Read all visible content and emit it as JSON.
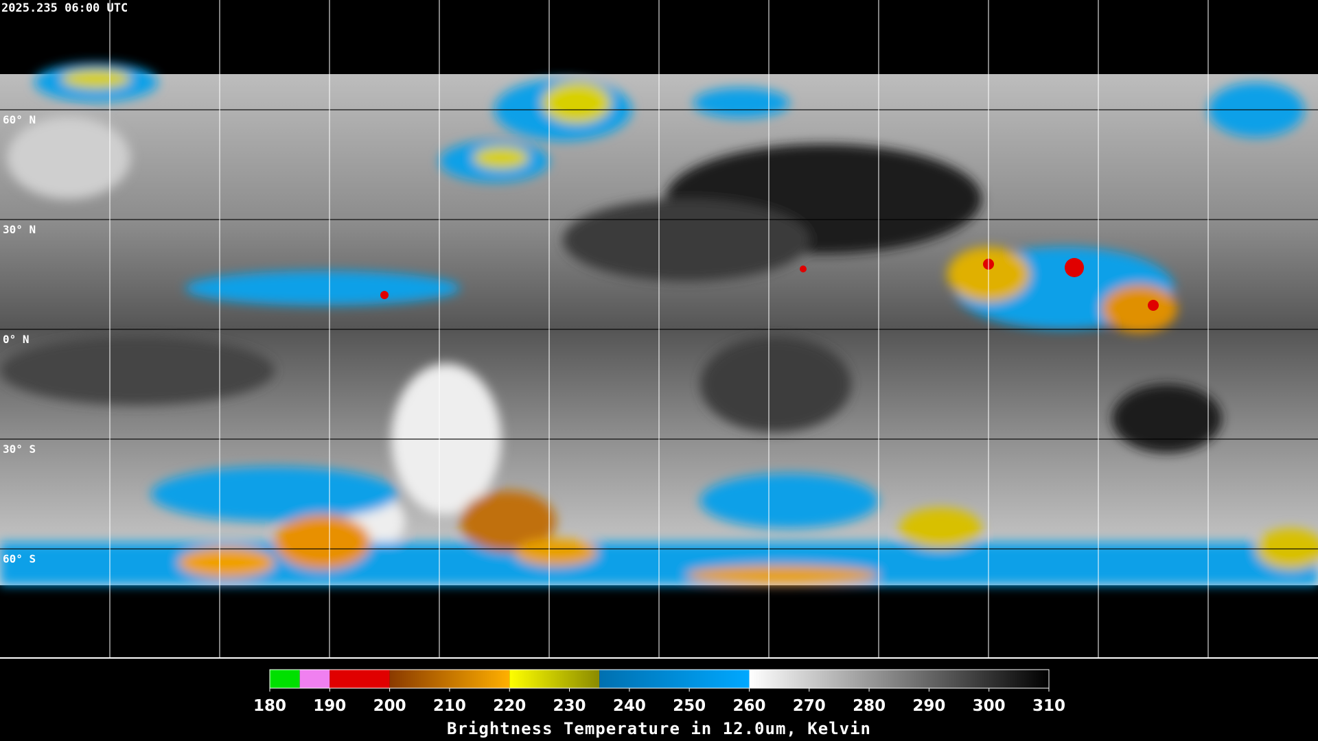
{
  "header": {
    "timestamp": "2025.235 06:00 UTC"
  },
  "map": {
    "latitude_labels": [
      "60° N",
      "30° N",
      "0° N",
      "30° S",
      "60° S"
    ]
  },
  "colorbar": {
    "title": "Brightness Temperature in 12.0um, Kelvin",
    "lim": [
      180,
      310
    ],
    "ticks": [
      180,
      190,
      200,
      210,
      220,
      230,
      240,
      250,
      260,
      270,
      280,
      290,
      300,
      310
    ],
    "segments": [
      {
        "range": [
          180,
          185
        ],
        "colors": [
          "#00e000",
          "#00e000"
        ]
      },
      {
        "range": [
          185,
          190
        ],
        "colors": [
          "#f080f0",
          "#f080f0"
        ]
      },
      {
        "range": [
          190,
          200
        ],
        "colors": [
          "#e00000",
          "#e00000"
        ]
      },
      {
        "range": [
          200,
          220
        ],
        "colors": [
          "#8a3a00",
          "#ffb000"
        ]
      },
      {
        "range": [
          220,
          235
        ],
        "colors": [
          "#ffff00",
          "#8a8a00"
        ]
      },
      {
        "range": [
          235,
          260
        ],
        "colors": [
          "#0070b0",
          "#00a8ff"
        ]
      },
      {
        "range": [
          260,
          310
        ],
        "colors": [
          "#ffffff",
          "#000000"
        ]
      }
    ]
  }
}
